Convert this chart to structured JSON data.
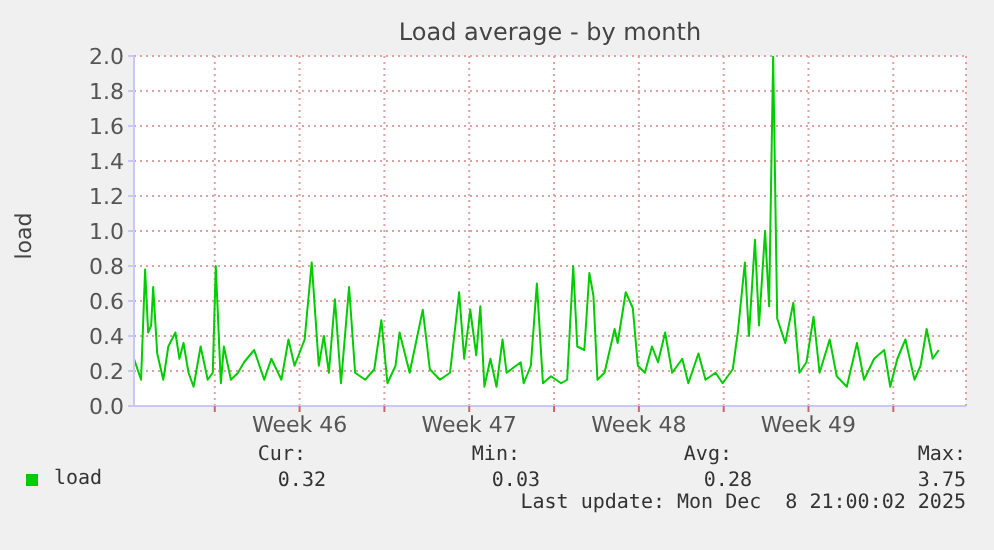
{
  "chart_data": {
    "type": "line",
    "title": "Load average - by month",
    "ylabel": "load",
    "x": [
      "2025-11-05T16:00",
      "2025-11-05T23:00",
      "2025-11-06T03:00",
      "2025-11-06T06:00",
      "2025-11-06T09:00",
      "2025-11-06T11:00",
      "2025-11-06T15:00",
      "2025-11-06T21:00",
      "2025-11-07T02:00",
      "2025-11-07T09:00",
      "2025-11-07T13:00",
      "2025-11-07T17:00",
      "2025-11-07T22:00",
      "2025-11-08T03:00",
      "2025-11-08T10:00",
      "2025-11-08T17:00",
      "2025-11-08T22:00",
      "2025-11-09T01:00",
      "2025-11-09T06:00",
      "2025-11-09T09:00",
      "2025-11-09T16:00",
      "2025-11-09T23:00",
      "2025-11-10T05:00",
      "2025-11-10T15:00",
      "2025-11-11T01:00",
      "2025-11-11T08:00",
      "2025-11-11T18:00",
      "2025-11-12T01:00",
      "2025-11-12T07:00",
      "2025-11-12T17:00",
      "2025-11-13T00:00",
      "2025-11-13T07:00",
      "2025-11-13T12:00",
      "2025-11-13T17:00",
      "2025-11-13T23:00",
      "2025-11-14T05:00",
      "2025-11-14T13:00",
      "2025-11-14T19:00",
      "2025-11-15T05:00",
      "2025-11-15T14:00",
      "2025-11-15T21:00",
      "2025-11-16T03:00",
      "2025-11-16T11:00",
      "2025-11-16T15:00",
      "2025-11-17T01:00",
      "2025-11-17T14:00",
      "2025-11-17T21:00",
      "2025-11-18T07:00",
      "2025-11-18T17:00",
      "2025-11-19T02:00",
      "2025-11-19T07:00",
      "2025-11-19T13:00",
      "2025-11-19T19:00",
      "2025-11-19T23:00",
      "2025-11-20T03:00",
      "2025-11-20T09:00",
      "2025-11-20T15:00",
      "2025-11-20T21:00",
      "2025-11-21T01:00",
      "2025-11-21T15:00",
      "2025-11-21T18:00",
      "2025-11-22T01:00",
      "2025-11-22T07:00",
      "2025-11-22T13:00",
      "2025-11-22T21:00",
      "2025-11-23T07:00",
      "2025-11-23T13:00",
      "2025-11-23T19:00",
      "2025-11-23T23:00",
      "2025-11-24T06:00",
      "2025-11-24T11:00",
      "2025-11-24T15:00",
      "2025-11-24T19:00",
      "2025-11-25T02:00",
      "2025-11-25T12:00",
      "2025-11-25T15:00",
      "2025-11-25T23:00",
      "2025-11-26T06:00",
      "2025-11-26T11:00",
      "2025-11-26T18:00",
      "2025-11-27T01:00",
      "2025-11-27T07:00",
      "2025-11-27T14:00",
      "2025-11-27T21:00",
      "2025-11-28T07:00",
      "2025-11-28T13:00",
      "2025-11-28T23:00",
      "2025-11-29T06:00",
      "2025-11-29T16:00",
      "2025-11-29T23:00",
      "2025-11-30T09:00",
      "2025-11-30T14:00",
      "2025-11-30T21:00",
      "2025-12-01T01:00",
      "2025-12-01T07:00",
      "2025-12-01T11:00",
      "2025-12-01T17:00",
      "2025-12-01T21:00",
      "2025-12-02T01:00",
      "2025-12-02T05:00",
      "2025-12-02T13:00",
      "2025-12-02T21:00",
      "2025-12-03T03:00",
      "2025-12-03T10:00",
      "2025-12-03T17:00",
      "2025-12-03T23:00",
      "2025-12-04T09:00",
      "2025-12-04T16:00",
      "2025-12-05T02:00",
      "2025-12-05T12:00",
      "2025-12-05T19:00",
      "2025-12-06T05:00",
      "2025-12-06T15:00",
      "2025-12-06T21:00",
      "2025-12-07T04:00",
      "2025-12-07T12:00",
      "2025-12-07T21:00",
      "2025-12-08T03:00",
      "2025-12-08T09:00",
      "2025-12-08T15:00",
      "2025-12-08T21:00"
    ],
    "series": [
      {
        "name": "load",
        "color": "#00cc00",
        "values": [
          0.27,
          0.15,
          0.78,
          0.42,
          0.46,
          0.68,
          0.3,
          0.15,
          0.34,
          0.42,
          0.27,
          0.36,
          0.19,
          0.11,
          0.34,
          0.15,
          0.19,
          0.8,
          0.13,
          0.34,
          0.15,
          0.19,
          0.25,
          0.32,
          0.15,
          0.27,
          0.15,
          0.38,
          0.23,
          0.38,
          0.82,
          0.23,
          0.4,
          0.19,
          0.61,
          0.13,
          0.68,
          0.19,
          0.15,
          0.21,
          0.49,
          0.13,
          0.23,
          0.42,
          0.19,
          0.55,
          0.21,
          0.15,
          0.19,
          0.65,
          0.27,
          0.55,
          0.29,
          0.57,
          0.11,
          0.27,
          0.11,
          0.38,
          0.19,
          0.25,
          0.13,
          0.23,
          0.7,
          0.13,
          0.17,
          0.13,
          0.15,
          0.8,
          0.34,
          0.32,
          0.76,
          0.63,
          0.15,
          0.19,
          0.44,
          0.36,
          0.65,
          0.56,
          0.23,
          0.19,
          0.34,
          0.25,
          0.42,
          0.19,
          0.27,
          0.13,
          0.3,
          0.15,
          0.19,
          0.13,
          0.21,
          0.42,
          0.82,
          0.4,
          0.95,
          0.46,
          1.0,
          0.57,
          2.0,
          0.5,
          0.36,
          0.59,
          0.19,
          0.25,
          0.51,
          0.19,
          0.38,
          0.17,
          0.11,
          0.36,
          0.15,
          0.27,
          0.32,
          0.11,
          0.27,
          0.38,
          0.15,
          0.23,
          0.44,
          0.27,
          0.32
        ]
      }
    ],
    "xlim": [
      "2025-11-05T16:00",
      "2025-12-10T00:00"
    ],
    "xticks": [
      {
        "value": "2025-11-09",
        "label": null
      },
      {
        "value": "2025-11-12T12:00",
        "label": "Week 46"
      },
      {
        "value": "2025-11-16",
        "label": null
      },
      {
        "value": "2025-11-19T12:00",
        "label": "Week 47"
      },
      {
        "value": "2025-11-23",
        "label": null
      },
      {
        "value": "2025-11-26T12:00",
        "label": "Week 48"
      },
      {
        "value": "2025-11-30",
        "label": null
      },
      {
        "value": "2025-12-03T12:00",
        "label": "Week 49"
      },
      {
        "value": "2025-12-07",
        "label": null
      }
    ],
    "ylim": [
      0,
      2.0
    ],
    "yticks": [
      {
        "value": 0,
        "label": "0.0"
      },
      {
        "value": 0.2,
        "label": "0.2"
      },
      {
        "value": 0.4,
        "label": "0.4"
      },
      {
        "value": 0.6,
        "label": "0.6"
      },
      {
        "value": 0.8,
        "label": "0.8"
      },
      {
        "value": 1.0,
        "label": "1.0"
      },
      {
        "value": 1.2,
        "label": "1.2"
      },
      {
        "value": 1.4,
        "label": "1.4"
      },
      {
        "value": 1.6,
        "label": "1.6"
      },
      {
        "value": 1.8,
        "label": "1.8"
      },
      {
        "value": 2.0,
        "label": "2.0"
      }
    ],
    "grid": true,
    "legend": "bottom left",
    "marker": "none",
    "line_style": "solid",
    "annotations": [
      "Cur:",
      "0.32",
      "Min:",
      "0.03",
      "Avg:",
      "0.28",
      "Max:",
      "3.75",
      "Last update: Mon Dec  8 21:00:02 2025"
    ]
  }
}
